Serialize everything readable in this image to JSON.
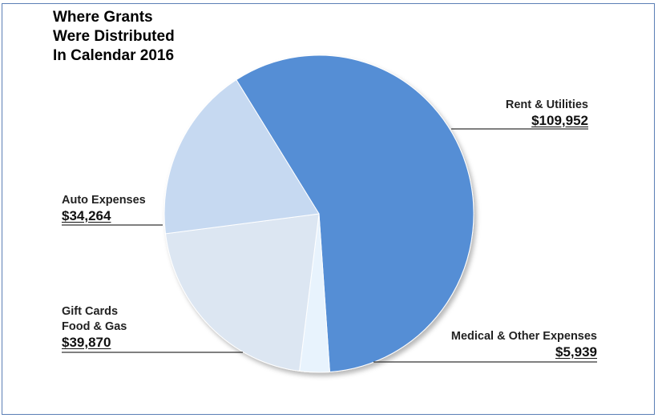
{
  "title": "Where Grants\nWere Distributed\nIn Calendar 2016",
  "chart_data": {
    "type": "pie",
    "title": "Where Grants\nWere Distributed\nIn Calendar 2016",
    "slices": [
      {
        "label": "Rent & Utilities",
        "value": 109952,
        "value_label": "$109,952",
        "color": "#558ed5"
      },
      {
        "label": "Medical & Other Expenses",
        "value": 5939,
        "value_label": "$5,939",
        "color": "#e8f3fd"
      },
      {
        "label": "Gift Cards\nFood & Gas",
        "value": 39870,
        "value_label": "$39,870",
        "color": "#dce6f2"
      },
      {
        "label": "Auto Expenses",
        "value": 34264,
        "value_label": "$34,264",
        "color": "#c6d9f1"
      }
    ]
  }
}
